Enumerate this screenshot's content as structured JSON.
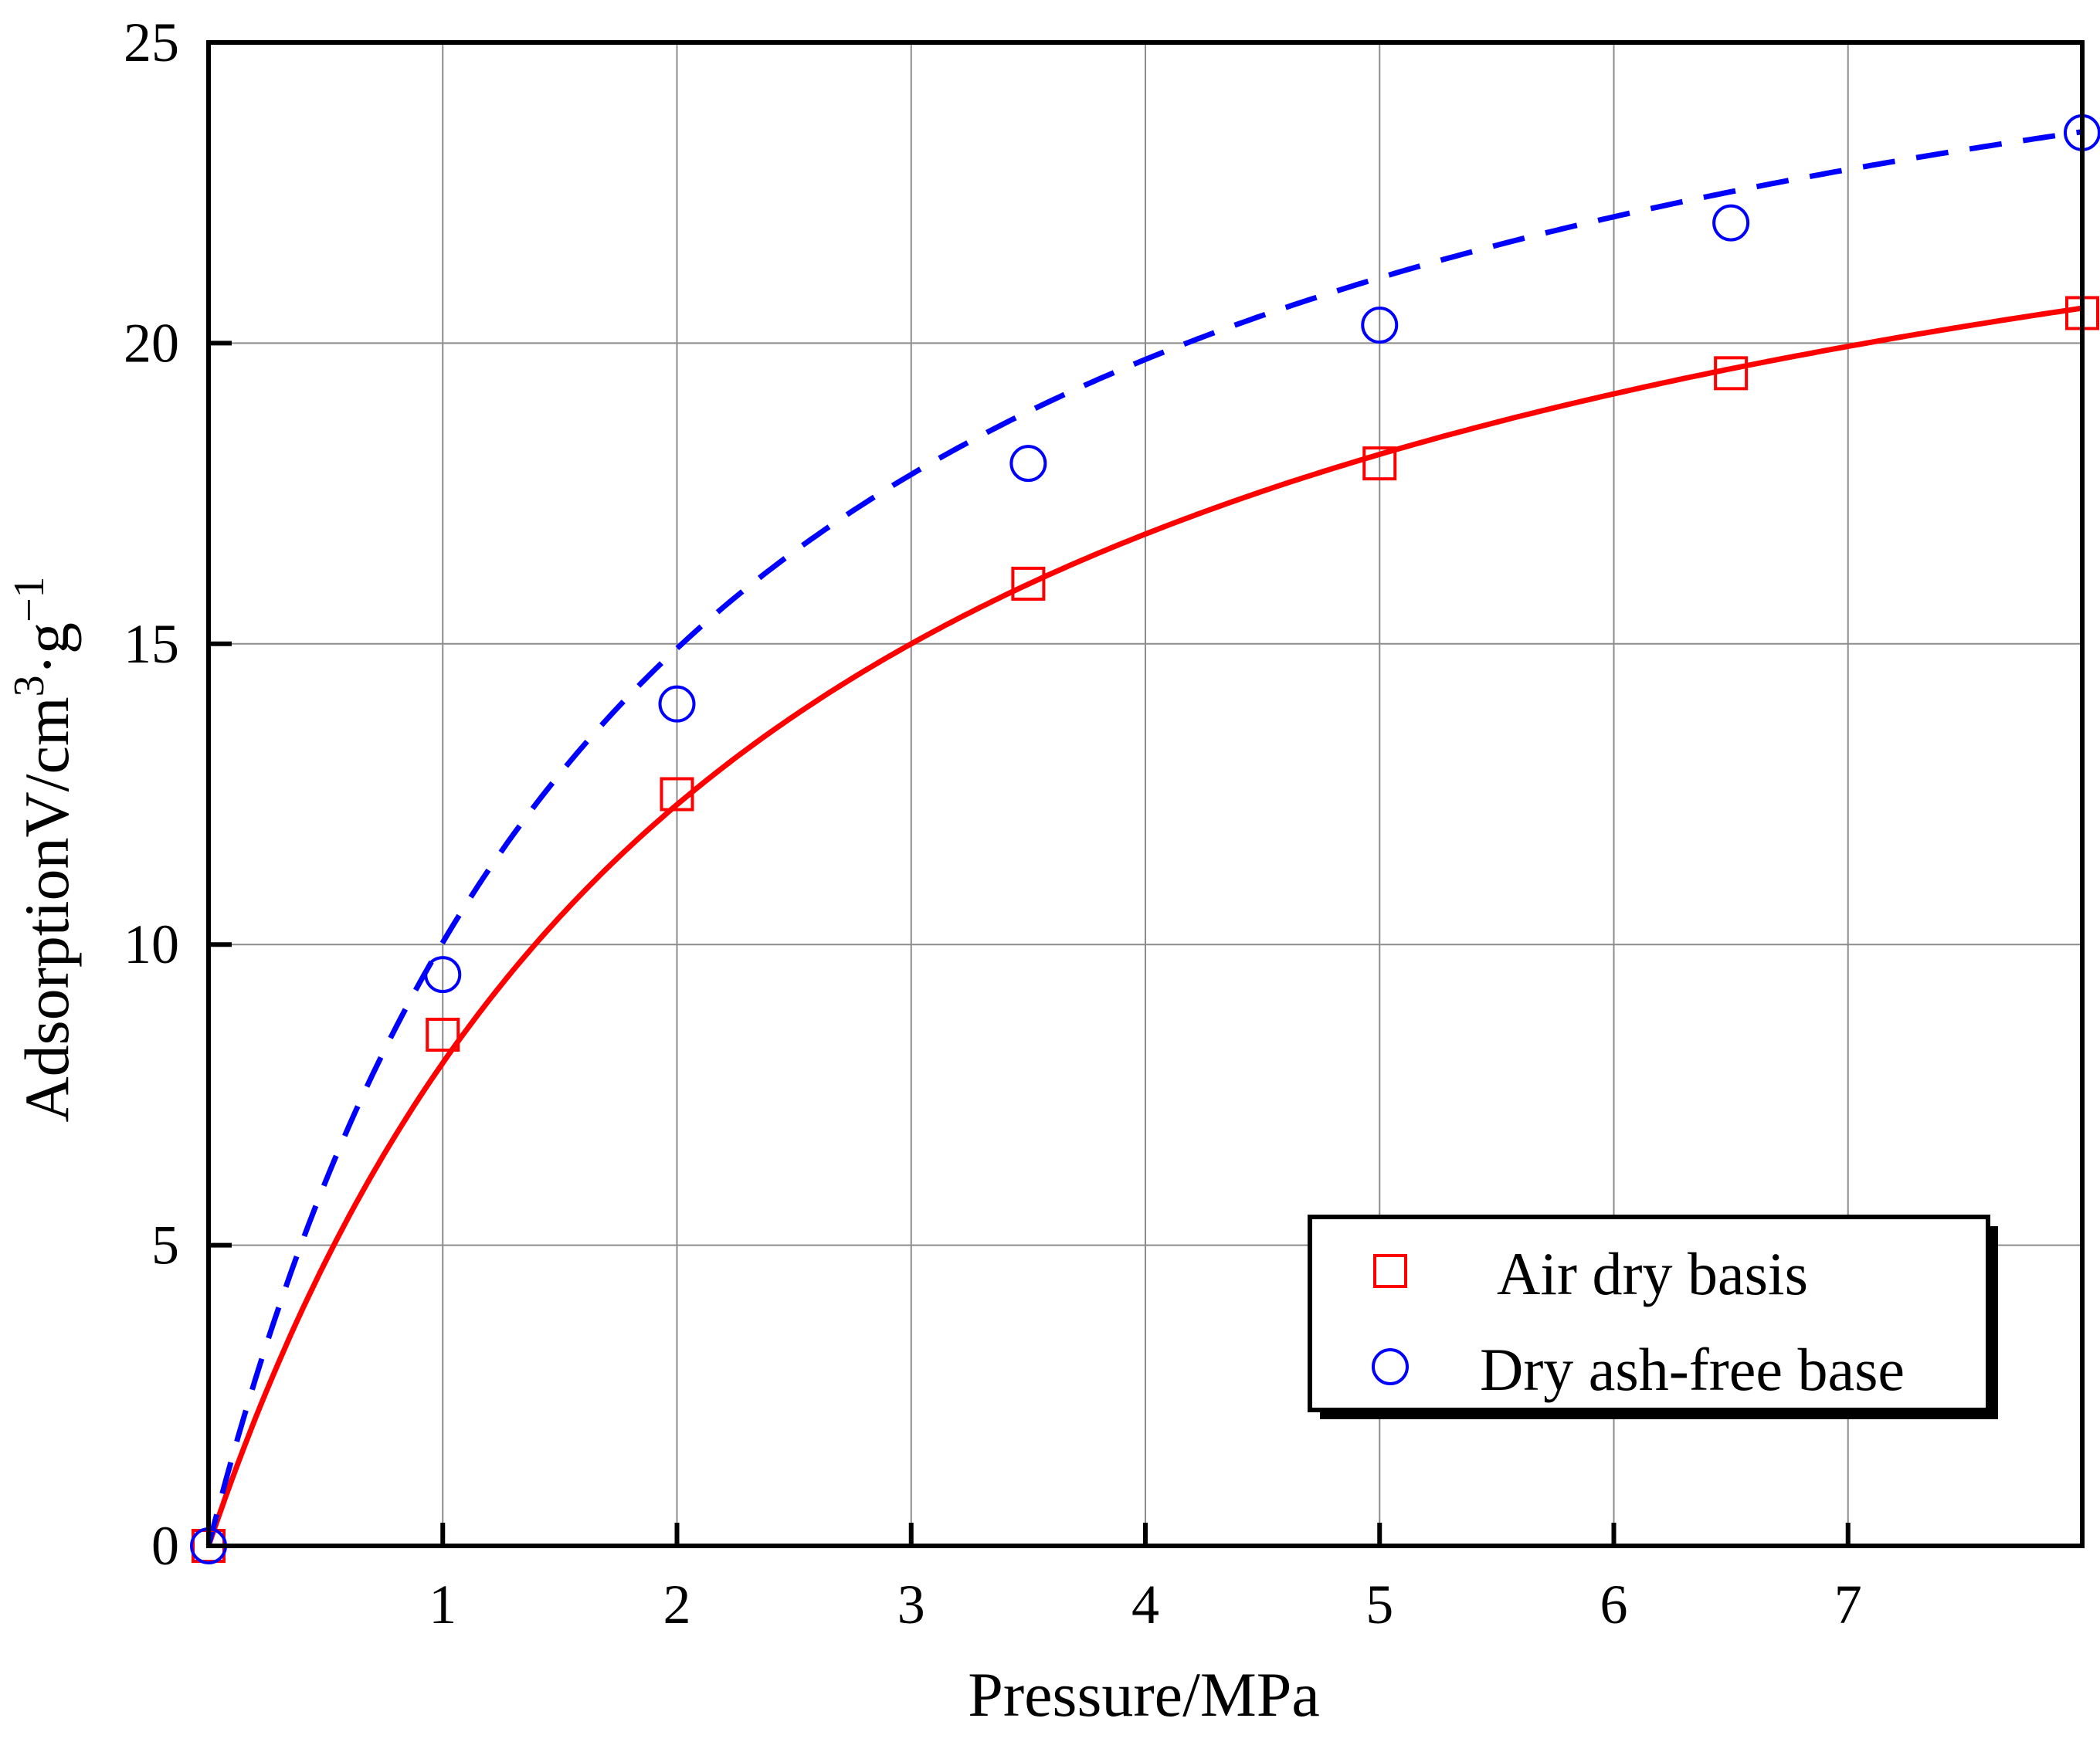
{
  "chart_data": {
    "type": "scatter",
    "title": "",
    "xlabel": "Pressure/MPa",
    "ylabel": {
      "main": "AdsorptionV/cm",
      "sup1": "3",
      "mid": "·g",
      "sup2": "−1"
    },
    "xlim": [
      0,
      8
    ],
    "ylim": [
      0,
      25
    ],
    "xticks": [
      1,
      2,
      3,
      4,
      5,
      6,
      7
    ],
    "xtick_labels": [
      "1",
      "2",
      "3",
      "4",
      "5",
      "6",
      "7"
    ],
    "yticks": [
      0,
      5,
      10,
      15,
      20,
      25
    ],
    "ytick_labels": [
      "0",
      "5",
      "10",
      "15",
      "20",
      "25"
    ],
    "grid": true,
    "legend_position": "bottom-right",
    "series": [
      {
        "name": "Air dry basis",
        "marker": "square",
        "line": "solid",
        "color": "#ff0000",
        "x": [
          0,
          1,
          2,
          3.5,
          5,
          6.5,
          8
        ],
        "y": [
          0,
          8.5,
          12.5,
          16,
          18,
          19.5,
          20.5
        ],
        "fit": {
          "model": "langmuir",
          "VL": 26.5,
          "PL": 2.3
        }
      },
      {
        "name": "Dry ash-free base",
        "marker": "circle",
        "line": "dashed",
        "color": "#0000ff",
        "x": [
          0,
          1,
          2,
          3.5,
          5,
          6.5,
          8
        ],
        "y": [
          0,
          9.5,
          14,
          18,
          20.3,
          22,
          23.5
        ],
        "fit": {
          "model": "langmuir",
          "VL": 29.1,
          "PL": 1.9
        }
      }
    ]
  }
}
